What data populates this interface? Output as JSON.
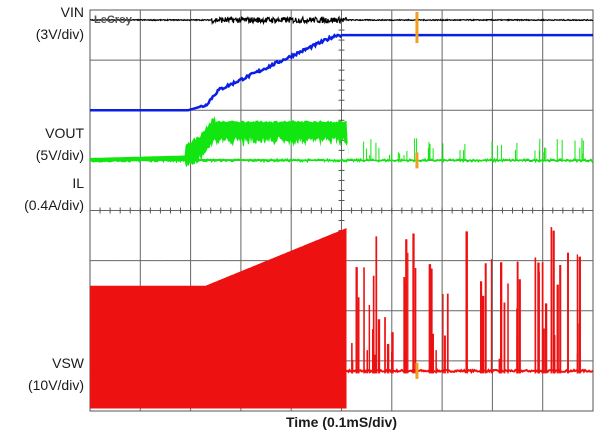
{
  "chart_data": {
    "type": "line",
    "title": "",
    "xlabel": "Time (0.1mS/div)",
    "brand": "LeCroy",
    "divisions": {
      "x": 10,
      "y": 8
    },
    "x_unit": "div",
    "xlim": [
      0,
      10
    ],
    "ylim": [
      0,
      8
    ],
    "trigger_x_div": 3.25,
    "cursor_x_div": 6.5,
    "series": [
      {
        "name": "VIN",
        "scale": "3V/div",
        "color": "#000000",
        "description": "flat, noisy between t=2.4 and t=5.1",
        "x": [
          0,
          2.4,
          5.1,
          10
        ],
        "y": [
          7.8,
          7.8,
          7.8,
          7.8
        ]
      },
      {
        "name": "VOUT",
        "scale": "5V/div",
        "color": "#0a1ee6",
        "x": [
          0,
          1.95,
          2.3,
          2.55,
          4.9,
          5.1,
          10
        ],
        "y": [
          6.0,
          6.0,
          6.1,
          6.4,
          7.5,
          7.5,
          7.5
        ]
      },
      {
        "name": "IL",
        "scale": "0.4A/div",
        "color": "#11e611",
        "x": [
          0,
          1.9,
          2.2,
          2.5,
          5.1,
          5.15,
          10
        ],
        "y": [
          5.0,
          5.05,
          5.25,
          5.65,
          5.65,
          5.0,
          5.0
        ]
      },
      {
        "name": "VSW",
        "scale": "10V/div",
        "color": "#ee1111",
        "x": [
          0,
          2.3,
          5.1,
          5.15,
          10
        ],
        "y": [
          2.5,
          2.5,
          3.65,
          0.8,
          0.8
        ]
      }
    ],
    "labels": [
      {
        "name": "VIN",
        "scale": "(3V/div)"
      },
      {
        "name": "VOUT",
        "scale": "(5V/div)"
      },
      {
        "name": "IL",
        "scale": "(0.4A/div)"
      },
      {
        "name": "VSW",
        "scale": "(10V/div)"
      }
    ],
    "grid": true
  }
}
